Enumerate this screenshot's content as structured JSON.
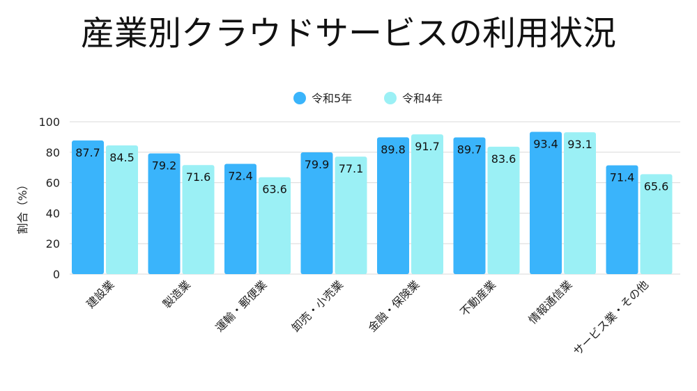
{
  "chart_data": {
    "type": "bar",
    "title": "産業別クラウドサービスの利用状況",
    "ylabel": "割合（%）",
    "xlabel": "",
    "ylim": [
      0,
      100
    ],
    "yticks": [
      0,
      20,
      40,
      60,
      80,
      100
    ],
    "grid": true,
    "legend_position": "top-center",
    "categories": [
      "建設業",
      "製造業",
      "運輸・郵便業",
      "卸売・小売業",
      "金融・保険業",
      "不動産業",
      "情報通信業",
      "サービス業・その他"
    ],
    "series": [
      {
        "name": "令和5年",
        "color": "#3ab4fb",
        "values": [
          87.7,
          79.2,
          72.4,
          79.9,
          89.8,
          89.7,
          93.4,
          71.4
        ]
      },
      {
        "name": "令和4年",
        "color": "#9bf0f5",
        "values": [
          84.5,
          71.6,
          63.6,
          77.1,
          91.7,
          83.6,
          93.1,
          65.6
        ]
      }
    ]
  }
}
